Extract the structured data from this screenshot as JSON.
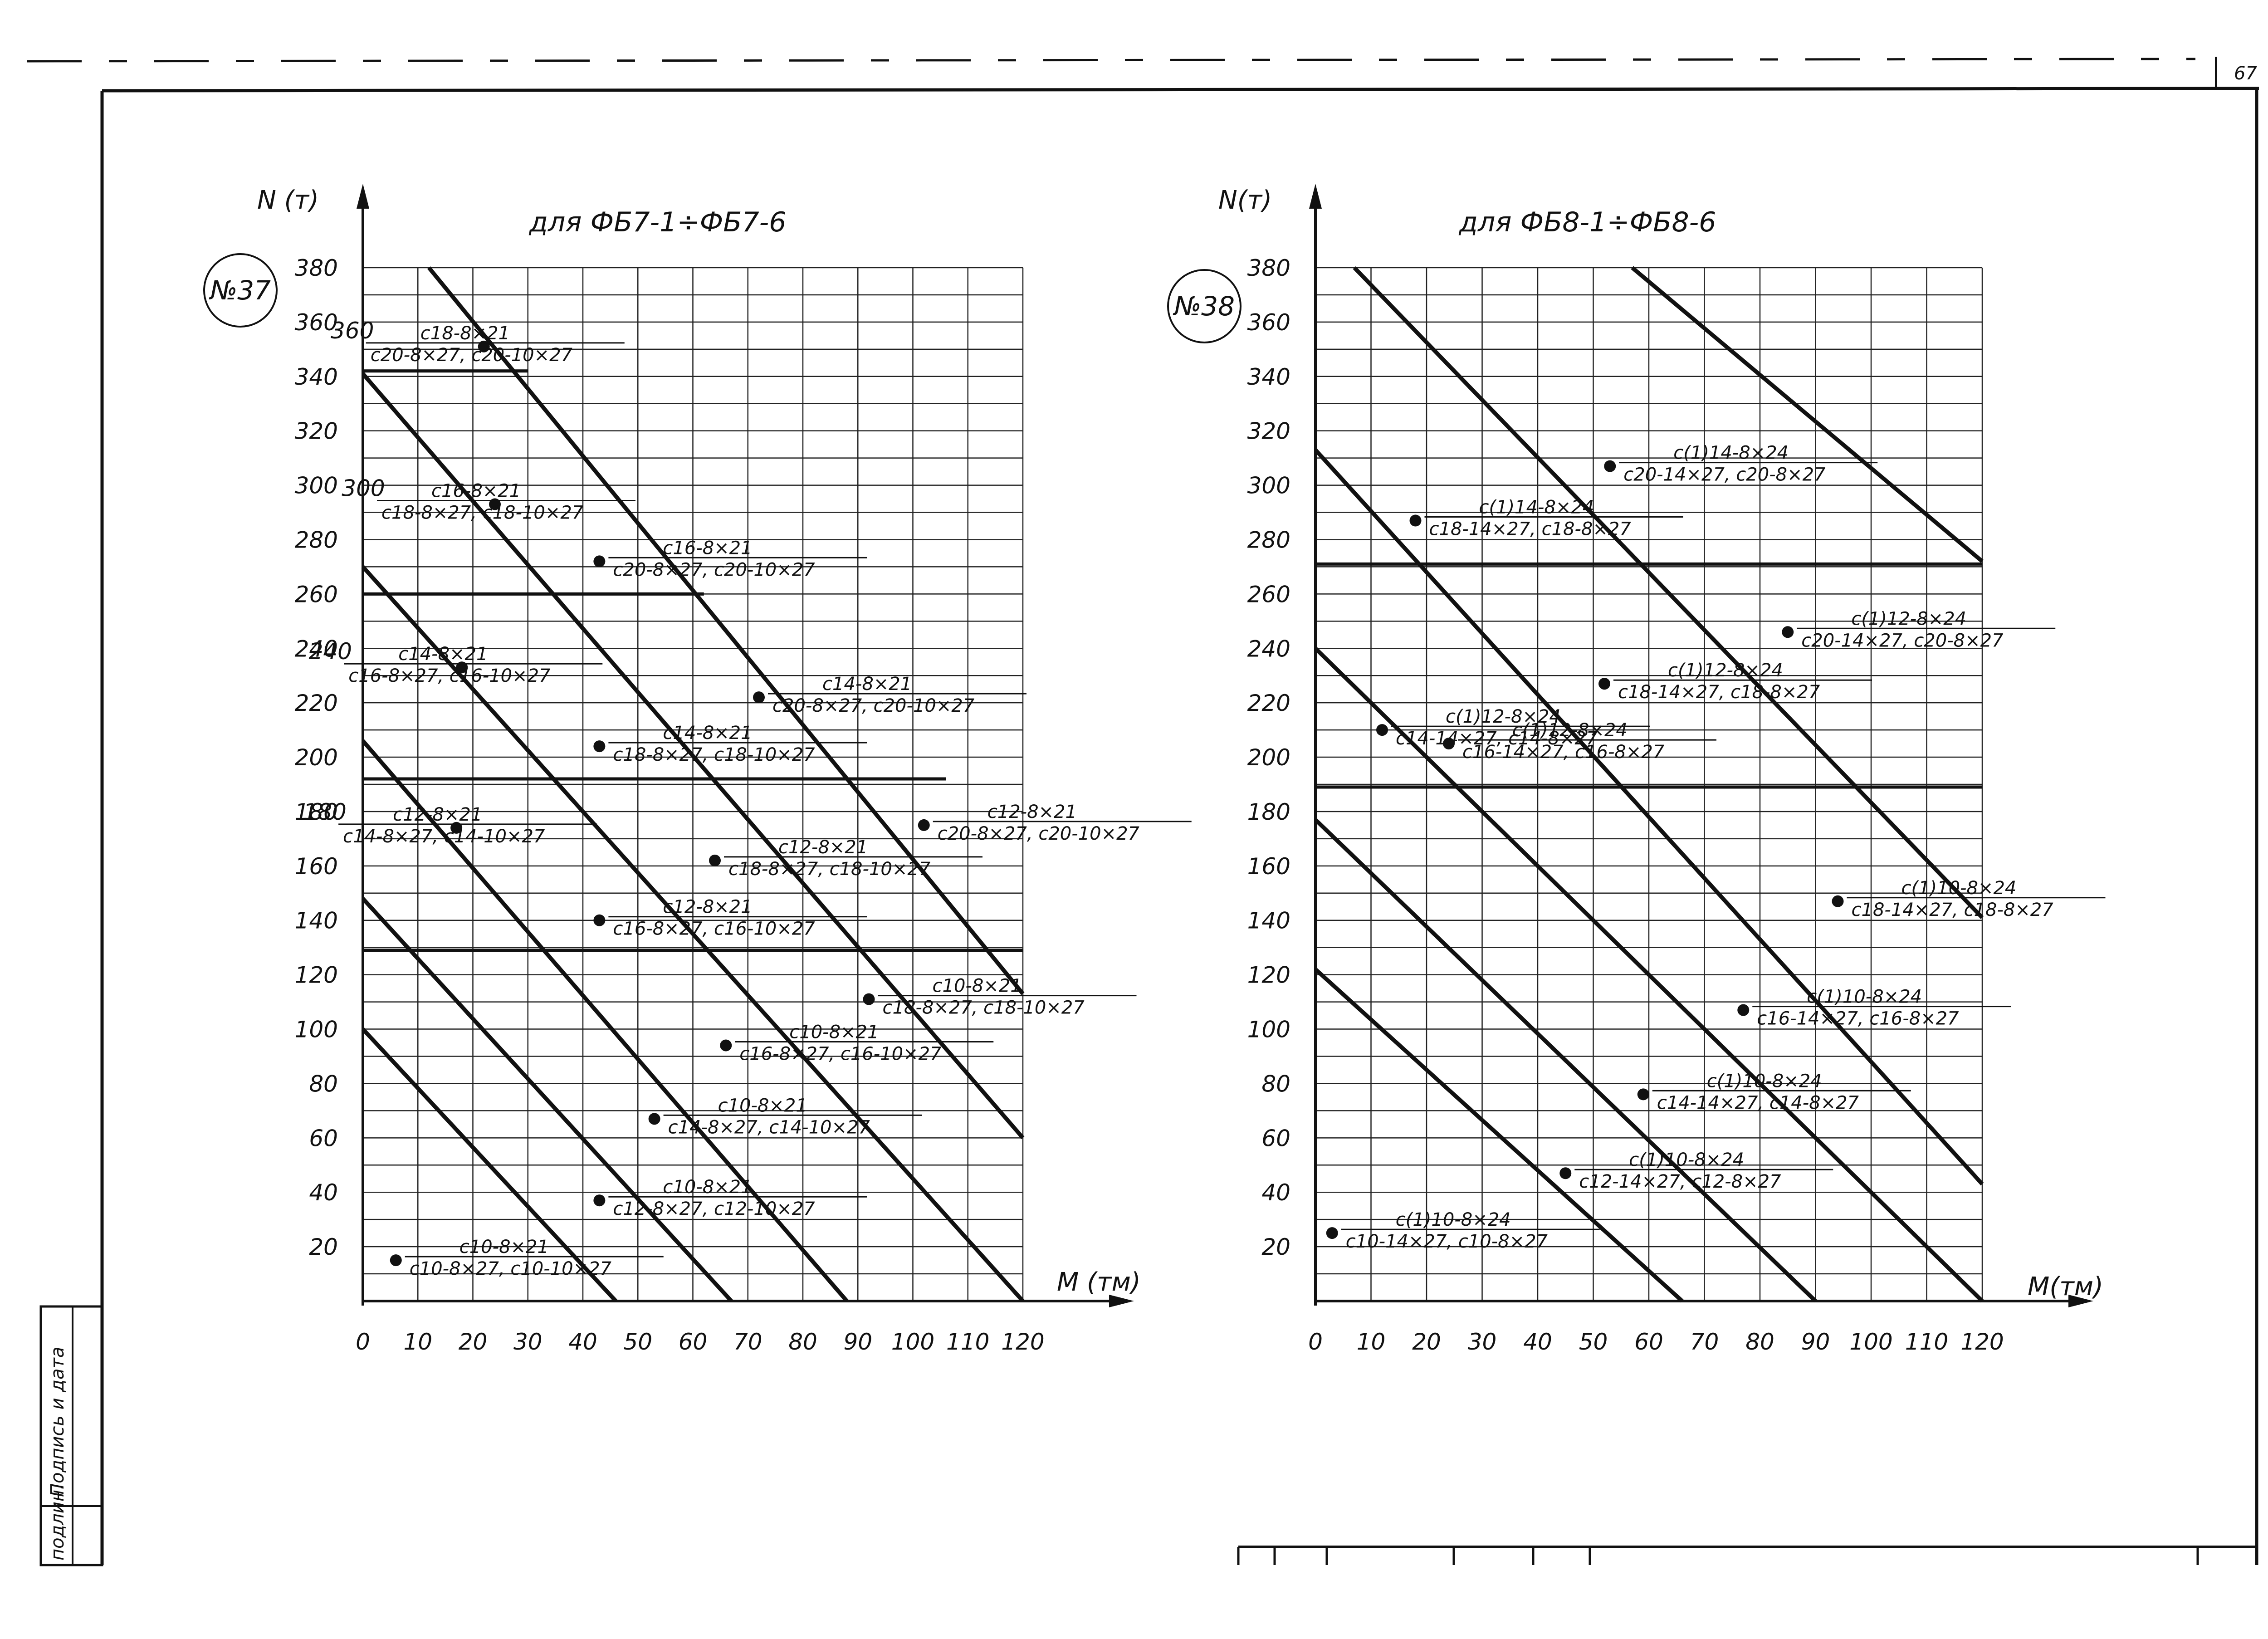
{
  "page_number": "67",
  "side_stamp": {
    "label1": "Подпись и дата",
    "label2": "подлин."
  },
  "chart_data": [
    {
      "type": "line",
      "badge": "№37",
      "title": "для ФБ7-1÷ФБ7-6",
      "xlabel": "M (тм)",
      "ylabel": "N (т)",
      "xlim": [
        0,
        120
      ],
      "ylim": [
        0,
        380
      ],
      "x_ticks": [
        "0",
        "10",
        "20",
        "30",
        "40",
        "50",
        "60",
        "70",
        "80",
        "90",
        "100",
        "110",
        "120"
      ],
      "y_ticks": [
        "20",
        "40",
        "60",
        "80",
        "100",
        "120",
        "140",
        "160",
        "180",
        "200",
        "220",
        "240",
        "260",
        "280",
        "300",
        "320",
        "340",
        "360",
        "380"
      ],
      "boundary_lines": [
        {
          "x": [
            0,
            46
          ],
          "y": [
            100,
            0
          ]
        },
        {
          "x": [
            0,
            67
          ],
          "y": [
            148,
            0
          ]
        },
        {
          "x": [
            0,
            88
          ],
          "y": [
            206,
            0
          ]
        },
        {
          "x": [
            0,
            120
          ],
          "y": [
            270,
            0
          ]
        },
        {
          "x": [
            0,
            120
          ],
          "y": [
            341,
            60
          ]
        },
        {
          "x": [
            12,
            120
          ],
          "y": [
            380,
            113
          ]
        }
      ],
      "horizontal_lines": [
        {
          "y": 342,
          "x": [
            0,
            30
          ]
        },
        {
          "y": 260,
          "x": [
            0,
            62
          ]
        },
        {
          "y": 192,
          "x": [
            0,
            106
          ]
        },
        {
          "y": 129,
          "x": [
            0,
            120
          ]
        }
      ],
      "points": [
        {
          "x": 6,
          "y": 15,
          "top": "с10-8×21",
          "bottom": "с10-8×27, с10-10×27"
        },
        {
          "x": 43,
          "y": 37,
          "top": "с10-8×21",
          "bottom": "с12-8×27, с12-10×27"
        },
        {
          "x": 53,
          "y": 67,
          "top": "с10-8×21",
          "bottom": "с14-8×27, с14-10×27"
        },
        {
          "x": 66,
          "y": 94,
          "top": "с10-8×21",
          "bottom": "с16-8×27, с16-10×27"
        },
        {
          "x": 92,
          "y": 111,
          "top": "с10-8×21",
          "bottom": "с18-8×27, с18-10×27"
        },
        {
          "x": 43,
          "y": 140,
          "top": "с12-8×21",
          "bottom": "с16-8×27, с16-10×27"
        },
        {
          "x": 64,
          "y": 162,
          "top": "с12-8×21",
          "bottom": "с18-8×27, с18-10×27"
        },
        {
          "x": 102,
          "y": 175,
          "top": "с12-8×21",
          "bottom": "с20-8×27, с20-10×27"
        },
        {
          "x": 17,
          "y": 174,
          "top": "с12-8×21",
          "bottom": "с14-8×27, с14-10×27",
          "side_value": "180"
        },
        {
          "x": 43,
          "y": 204,
          "top": "с14-8×21",
          "bottom": "с18-8×27, с18-10×27"
        },
        {
          "x": 72,
          "y": 222,
          "top": "с14-8×21",
          "bottom": "с20-8×27, с20-10×27"
        },
        {
          "x": 18,
          "y": 233,
          "top": "с14-8×21",
          "bottom": "с16-8×27, с16-10×27",
          "side_value": "240"
        },
        {
          "x": 43,
          "y": 272,
          "top": "с16-8×21",
          "bottom": "с20-8×27, с20-10×27"
        },
        {
          "x": 24,
          "y": 293,
          "top": "с16-8×21",
          "bottom": "с18-8×27, с18-10×27",
          "side_value": "300"
        },
        {
          "x": 22,
          "y": 351,
          "top": "с18-8×21",
          "bottom": "с20-8×27, с20-10×27",
          "side_value": "360"
        }
      ]
    },
    {
      "type": "line",
      "badge": "№38",
      "title": "для ФБ8-1÷ФБ8-6",
      "xlabel": "M(тм)",
      "ylabel": "N(т)",
      "xlim": [
        0,
        120
      ],
      "ylim": [
        0,
        380
      ],
      "x_ticks": [
        "0",
        "10",
        "20",
        "30",
        "40",
        "50",
        "60",
        "70",
        "80",
        "90",
        "100",
        "110",
        "120"
      ],
      "y_ticks": [
        "20",
        "40",
        "60",
        "80",
        "100",
        "120",
        "140",
        "160",
        "180",
        "200",
        "220",
        "240",
        "260",
        "280",
        "300",
        "320",
        "340",
        "360",
        "380"
      ],
      "boundary_lines": [
        {
          "x": [
            0,
            66
          ],
          "y": [
            122,
            0
          ]
        },
        {
          "x": [
            0,
            90
          ],
          "y": [
            177,
            0
          ]
        },
        {
          "x": [
            0,
            120
          ],
          "y": [
            240,
            0
          ]
        },
        {
          "x": [
            0,
            120
          ],
          "y": [
            313,
            43
          ]
        },
        {
          "x": [
            7,
            120
          ],
          "y": [
            380,
            141
          ]
        },
        {
          "x": [
            57,
            120
          ],
          "y": [
            380,
            272
          ]
        }
      ],
      "horizontal_lines": [
        {
          "y": 271,
          "x": [
            0,
            120
          ]
        },
        {
          "y": 189,
          "x": [
            0,
            120
          ]
        }
      ],
      "points": [
        {
          "x": 3,
          "y": 25,
          "top": "с(1)10-8×24",
          "bottom": "с10-14×27, с10-8×27"
        },
        {
          "x": 45,
          "y": 47,
          "top": "с(1)10-8×24",
          "bottom": "с12-14×27, с12-8×27"
        },
        {
          "x": 59,
          "y": 76,
          "top": "с(1)10-8×24",
          "bottom": "с14-14×27, с14-8×27"
        },
        {
          "x": 77,
          "y": 107,
          "top": "с(1)10-8×24",
          "bottom": "с16-14×27, с16-8×27"
        },
        {
          "x": 94,
          "y": 147,
          "top": "с(1)10-8×24",
          "bottom": "с18-14×27, с18-8×27"
        },
        {
          "x": 24,
          "y": 205,
          "top": "с(1)12-8×24",
          "bottom": "с16-14×27, с16-8×27"
        },
        {
          "x": 52,
          "y": 227,
          "top": "с(1)12-8×24",
          "bottom": "с18-14×27, с18-8×27"
        },
        {
          "x": 85,
          "y": 246,
          "top": "с(1)12-8×24",
          "bottom": "с20-14×27, с20-8×27"
        },
        {
          "x": 12,
          "y": 210,
          "top": "с(1)12-8×24",
          "bottom": "с14-14×27, с14-8×27"
        },
        {
          "x": 18,
          "y": 287,
          "top": "с(1)14-8×24",
          "bottom": "с18-14×27, с18-8×27"
        },
        {
          "x": 53,
          "y": 307,
          "top": "с(1)14-8×24",
          "bottom": "с20-14×27, с20-8×27"
        }
      ]
    }
  ]
}
